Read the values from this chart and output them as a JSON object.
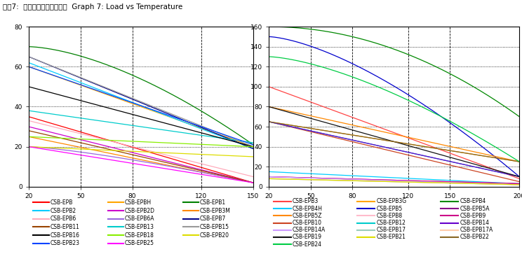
{
  "title": "图表7:  载荷随温度变化曲线图  Graph 7: Load vs Temperature",
  "left_chart": {
    "xlim": [
      20,
      150
    ],
    "ylim": [
      0,
      80
    ],
    "xticks": [
      20,
      50,
      80,
      120,
      150
    ],
    "yticks": [
      0,
      20,
      40,
      60,
      80
    ],
    "hlines": [
      20,
      40,
      60,
      80
    ],
    "vlines": [
      50,
      80,
      120
    ],
    "series": [
      {
        "name": "CSB-EPB",
        "color": "#ff0000",
        "start": 35,
        "end": 2,
        "power": 1.0
      },
      {
        "name": "CSB-EPBH",
        "color": "#ffa500",
        "start": 60,
        "end": 20,
        "power": 1.0
      },
      {
        "name": "CSB-EPB1",
        "color": "#008000",
        "start": 70,
        "end": 21,
        "power": 1.6
      },
      {
        "name": "CSB-EPB2",
        "color": "#00ccff",
        "start": 62,
        "end": 19,
        "power": 1.0
      },
      {
        "name": "CSB-EPB2D",
        "color": "#cc00cc",
        "start": 30,
        "end": 2,
        "power": 1.0
      },
      {
        "name": "CSB-EPB3M",
        "color": "#ff8800",
        "start": 25,
        "end": 2,
        "power": 1.0
      },
      {
        "name": "CSB-EPB6",
        "color": "#ffaabb",
        "start": 33,
        "end": 5,
        "power": 1.0
      },
      {
        "name": "CSB-EPB6A",
        "color": "#9966dd",
        "start": 20,
        "end": 2,
        "power": 1.3
      },
      {
        "name": "CSB-EPB7",
        "color": "#000088",
        "start": 65,
        "end": 19,
        "power": 1.0
      },
      {
        "name": "CSB-EPB11",
        "color": "#994400",
        "start": 28,
        "end": 2,
        "power": 1.0
      },
      {
        "name": "CSB-EPB13",
        "color": "#00cccc",
        "start": 38,
        "end": 22,
        "power": 1.0
      },
      {
        "name": "CSB-EPB15",
        "color": "#999999",
        "start": 65,
        "end": 20,
        "power": 1.0
      },
      {
        "name": "CSB-EPB16",
        "color": "#000000",
        "start": 50,
        "end": 20,
        "power": 1.0
      },
      {
        "name": "CSB-EPB18",
        "color": "#88ee00",
        "start": 25,
        "end": 20,
        "power": 1.0
      },
      {
        "name": "CSB-EPB20",
        "color": "#dddd00",
        "start": 20,
        "end": 15,
        "power": 1.0
      },
      {
        "name": "CSB-EPB23",
        "color": "#0044ff",
        "start": 60,
        "end": 21,
        "power": 1.0
      },
      {
        "name": "CSB-EPB25",
        "color": "#ff00ff",
        "start": 20,
        "end": 2,
        "power": 1.0
      }
    ]
  },
  "right_chart": {
    "xlim": [
      20,
      200
    ],
    "ylim": [
      0,
      160
    ],
    "xticks": [
      20,
      50,
      80,
      120,
      150,
      200
    ],
    "yticks": [
      0,
      20,
      40,
      60,
      80,
      100,
      120,
      140,
      160
    ],
    "hlines": [
      20,
      40,
      60,
      80,
      100,
      120,
      140,
      160
    ],
    "vlines": [
      50,
      80,
      120,
      150
    ],
    "series": [
      {
        "name": "CSB-EPB3",
        "color": "#ff4444",
        "start": 100,
        "end": 8,
        "power": 1.0
      },
      {
        "name": "CSB-EPB3G",
        "color": "#ffa500",
        "start": 65,
        "end": 25,
        "power": 1.0
      },
      {
        "name": "CSB-EPB4",
        "color": "#008800",
        "start": 160,
        "end": 70,
        "power": 2.0
      },
      {
        "name": "CSB-EPB4H",
        "color": "#00ccff",
        "start": 15,
        "end": 3,
        "power": 1.0
      },
      {
        "name": "CSB-EPB5",
        "color": "#0000cc",
        "start": 150,
        "end": 10,
        "power": 1.5
      },
      {
        "name": "CSB-EPB5A",
        "color": "#880088",
        "start": 10,
        "end": 3,
        "power": 1.0
      },
      {
        "name": "CSB-EPB5Z",
        "color": "#ff8800",
        "start": 80,
        "end": 25,
        "power": 1.0
      },
      {
        "name": "CSB-EPB8",
        "color": "#ffbbcc",
        "start": 10,
        "end": 3,
        "power": 1.0
      },
      {
        "name": "CSB-EPB9",
        "color": "#cc0088",
        "start": 10,
        "end": 3,
        "power": 1.0
      },
      {
        "name": "CSB-EPB10",
        "color": "#cc4422",
        "start": 65,
        "end": 5,
        "power": 1.0
      },
      {
        "name": "CSB-EPB12",
        "color": "#00cccc",
        "start": 65,
        "end": 10,
        "power": 1.0
      },
      {
        "name": "CSB-EPB14",
        "color": "#6600cc",
        "start": 65,
        "end": 10,
        "power": 1.0
      },
      {
        "name": "CSB-EPB14A",
        "color": "#cc99ff",
        "start": 10,
        "end": 2,
        "power": 1.0
      },
      {
        "name": "CSB-EPB17",
        "color": "#99ccbb",
        "start": 8,
        "end": 2,
        "power": 1.0
      },
      {
        "name": "CSB-EPB17A",
        "color": "#ffccaa",
        "start": 8,
        "end": 2,
        "power": 1.0
      },
      {
        "name": "CSB-EPB19",
        "color": "#111111",
        "start": 80,
        "end": 10,
        "power": 1.0
      },
      {
        "name": "CSB-EPB21",
        "color": "#dddd00",
        "start": 8,
        "end": 2,
        "power": 1.0
      },
      {
        "name": "CSB-EPB22",
        "color": "#886622",
        "start": 65,
        "end": 25,
        "power": 1.0
      },
      {
        "name": "CSB-EPB24",
        "color": "#00cc44",
        "start": 130,
        "end": 25,
        "power": 1.5
      }
    ]
  },
  "legend_left": [
    [
      [
        "CSB-EPB",
        "#ff0000"
      ],
      [
        "CSB-EPBH",
        "#ffa500"
      ],
      [
        "CSB-EPB1",
        "#008000"
      ]
    ],
    [
      [
        "CSB-EPB2",
        "#00ccff"
      ],
      [
        "CSB-EPB2D",
        "#cc00cc"
      ],
      [
        "CSB-EPB3M",
        "#ff8800"
      ]
    ],
    [
      [
        "CSB-EPB6",
        "#ffaabb"
      ],
      [
        "CSB-EPB6A",
        "#9966dd"
      ],
      [
        "CSB-EPB7",
        "#000088"
      ]
    ],
    [
      [
        "CSB-EPB11",
        "#994400"
      ],
      [
        "CSB-EPB13",
        "#00cccc"
      ],
      [
        "CSB-EPB15",
        "#999999"
      ]
    ],
    [
      [
        "CSB-EPB16",
        "#000000"
      ],
      [
        "CSB-EPB18",
        "#88ee00"
      ],
      [
        "CSB-EPB20",
        "#dddd00"
      ]
    ],
    [
      [
        "CSB-EPB23",
        "#0044ff"
      ],
      [
        "CSB-EPB25",
        "#ff00ff"
      ],
      null
    ]
  ],
  "legend_right": [
    [
      [
        "CSB-EPB3",
        "#ff4444"
      ],
      [
        "CSB-EPB3G",
        "#ffa500"
      ],
      [
        "CSB-EPB4",
        "#008800"
      ]
    ],
    [
      [
        "CSB-EPB4H",
        "#00ccff"
      ],
      [
        "CSB-EPB5",
        "#0000cc"
      ],
      [
        "CSB-EPB5A",
        "#880088"
      ]
    ],
    [
      [
        "CSB-EPB5Z",
        "#ff8800"
      ],
      [
        "CSB-EPB8",
        "#ffbbcc"
      ],
      [
        "CSB-EPB9",
        "#cc0088"
      ]
    ],
    [
      [
        "CSB-EPB10",
        "#cc4422"
      ],
      [
        "CSB-EPB12",
        "#00cccc"
      ],
      [
        "CSB-EPB14",
        "#6600cc"
      ]
    ],
    [
      [
        "CSB-EPB14A",
        "#cc99ff"
      ],
      [
        "CSB-EPB17",
        "#99ccbb"
      ],
      [
        "CSB-EPB17A",
        "#ffccaa"
      ]
    ],
    [
      [
        "CSB-EPB19",
        "#111111"
      ],
      [
        "CSB-EPB21",
        "#dddd00"
      ],
      [
        "CSB-EPB22",
        "#886622"
      ]
    ],
    [
      [
        "CSB-EPB24",
        "#00cc44"
      ],
      null,
      null
    ]
  ]
}
